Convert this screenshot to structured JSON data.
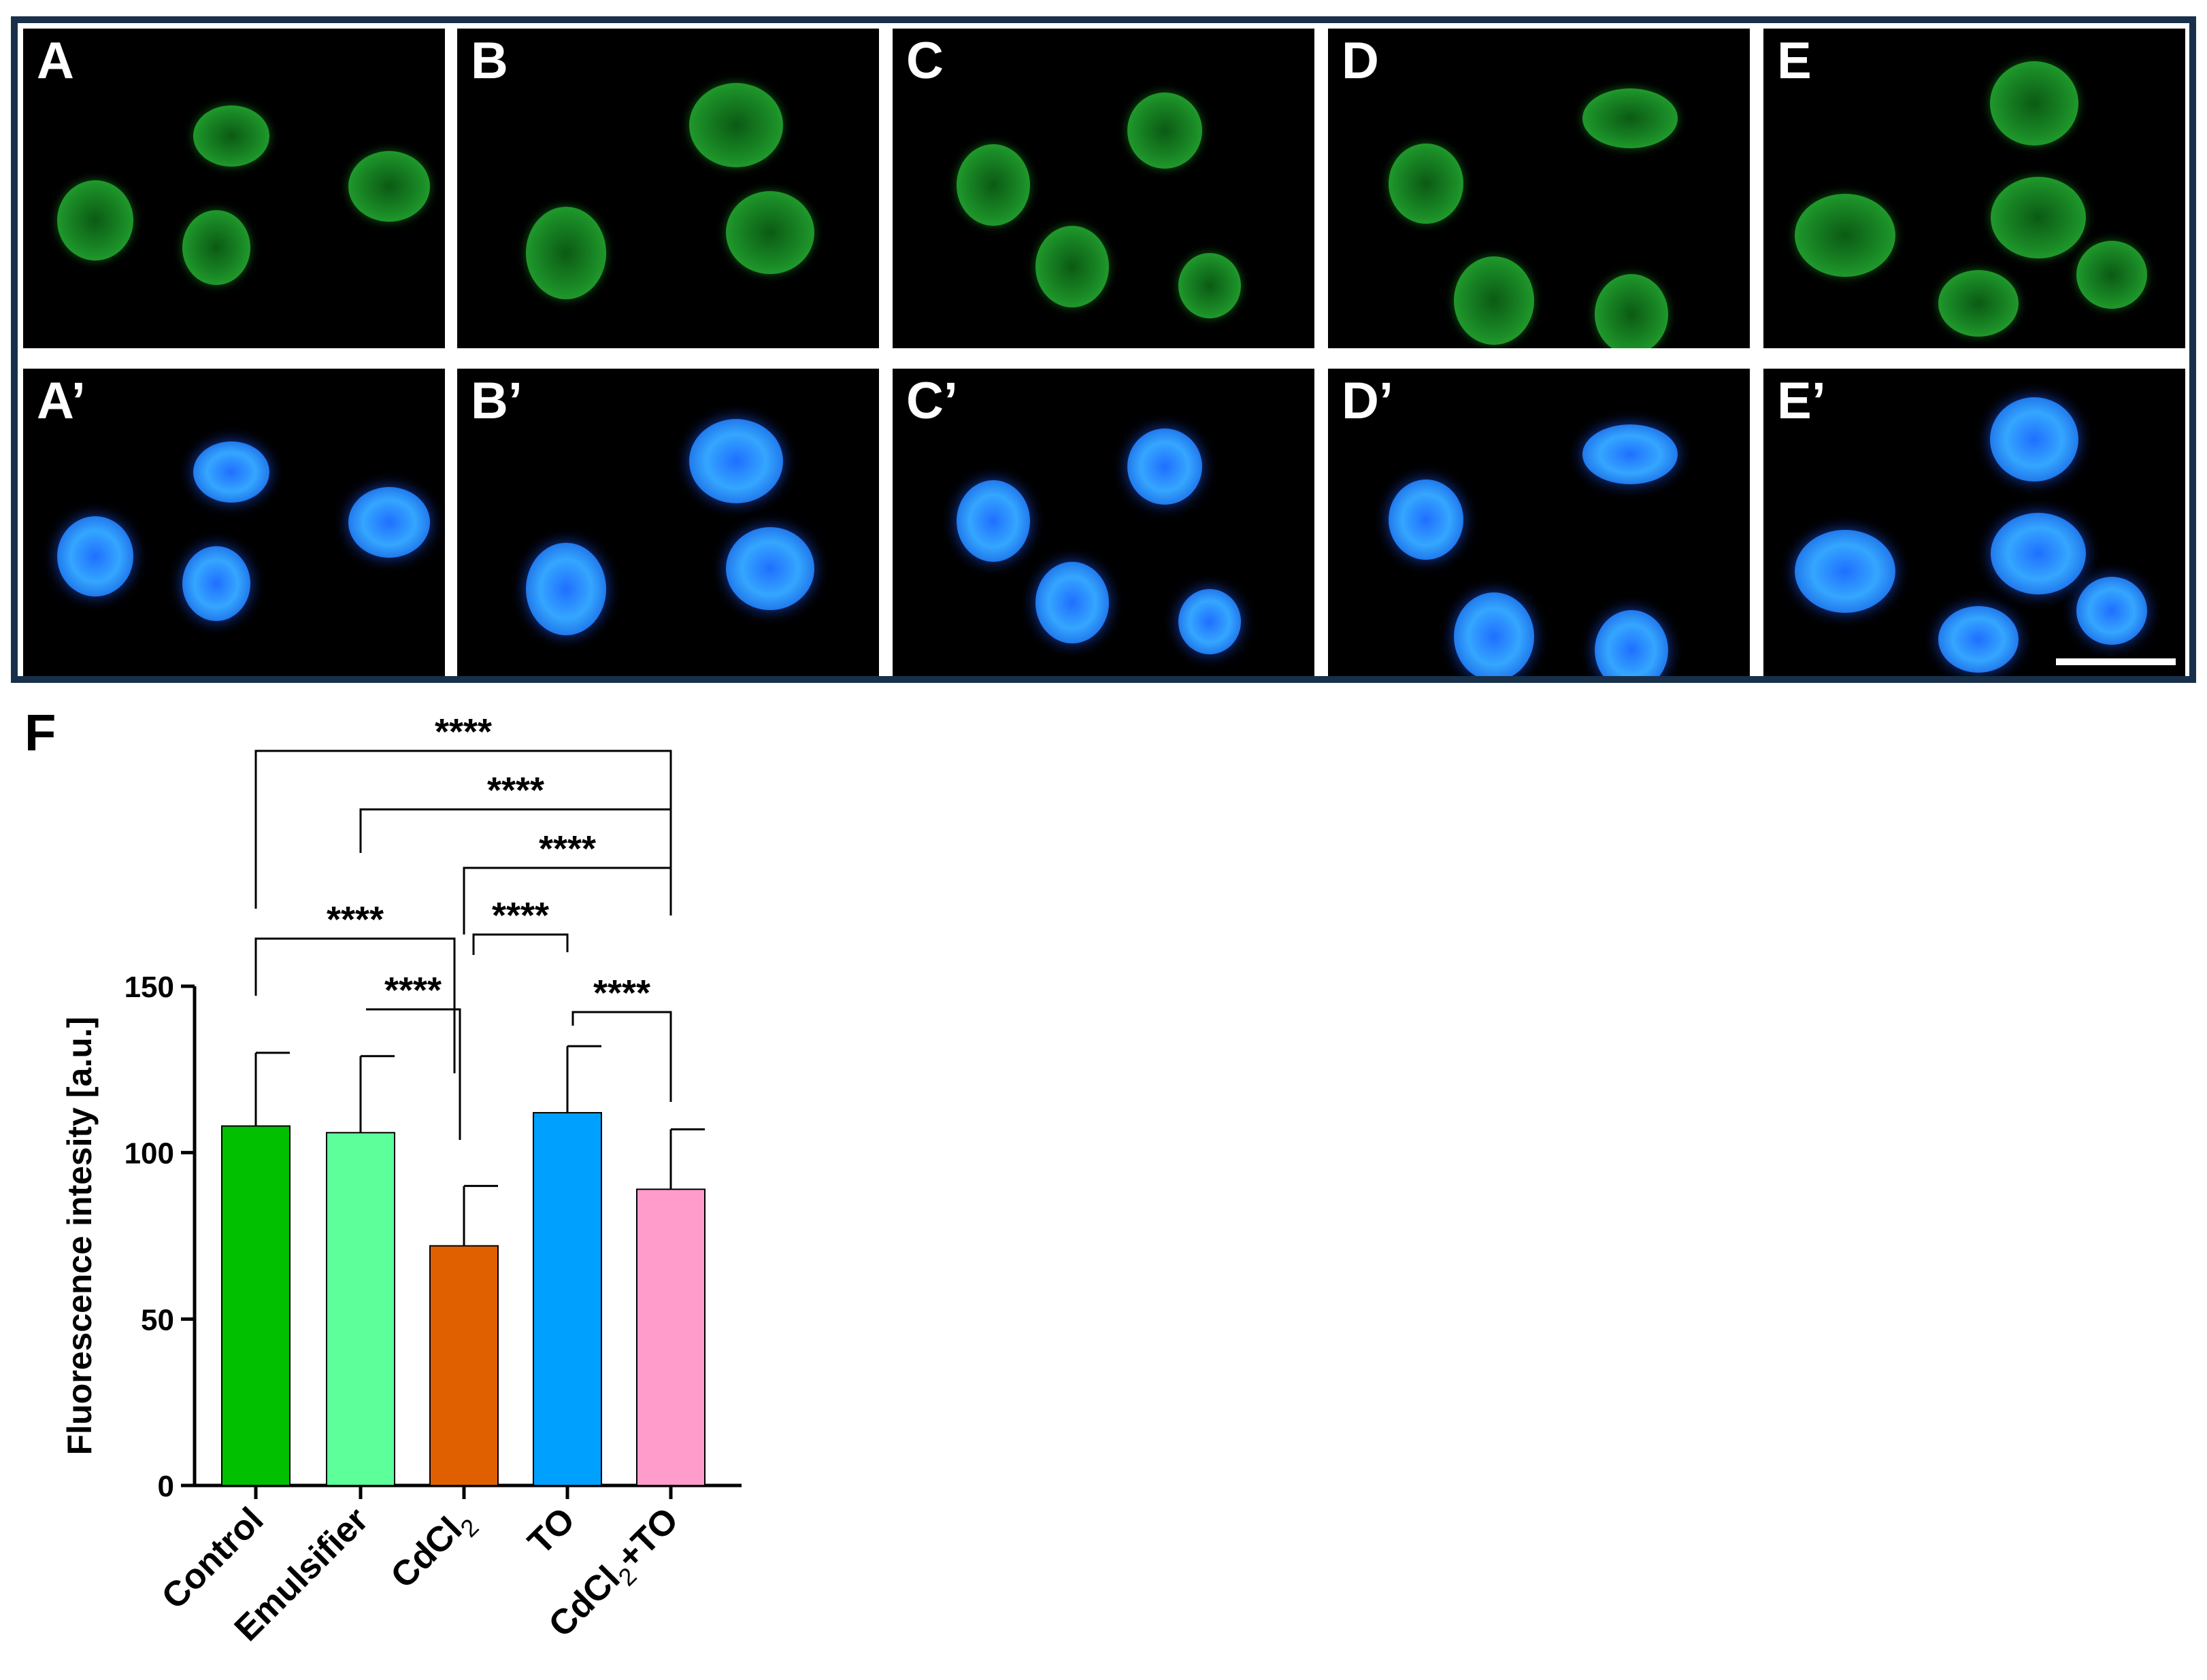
{
  "panels": {
    "top_row": [
      "A",
      "B",
      "C",
      "D",
      "E"
    ],
    "bottom_row": [
      "A’",
      "B’",
      "C’",
      "D’",
      "E’"
    ]
  },
  "panel_f_label": "F",
  "colors": {
    "green_channel": "#25a630",
    "blue_channel": "#35a6ff",
    "frame": "#18304a"
  },
  "chart_data": {
    "type": "bar",
    "title": "",
    "xlabel": "",
    "ylabel": "Fluorescence intesity [a.u.]",
    "ylim": [
      0,
      150
    ],
    "yticks": [
      "0",
      "50",
      "100",
      "150"
    ],
    "categories": [
      "Control",
      "Emulsifier",
      "CdCl2",
      "TO",
      "CdCl2+TO"
    ],
    "category_labels": [
      {
        "base": "Control",
        "sub": "",
        "tail": ""
      },
      {
        "base": "Emulsifier",
        "sub": "",
        "tail": ""
      },
      {
        "base": "CdCl",
        "sub": "2",
        "tail": ""
      },
      {
        "base": "TO",
        "sub": "",
        "tail": ""
      },
      {
        "base": "CdCl",
        "sub": "2",
        "tail": "+TO"
      }
    ],
    "values": [
      108,
      106,
      72,
      112,
      89
    ],
    "errors": [
      22,
      23,
      18,
      20,
      18
    ],
    "bar_colors": [
      "#00c000",
      "#5cff9a",
      "#e06000",
      "#00a0ff",
      "#ff9ccc"
    ],
    "significance": [
      {
        "from": 0,
        "to": 4,
        "label": "****"
      },
      {
        "from": 1,
        "to": 4,
        "label": "****"
      },
      {
        "from": 2,
        "to": 4,
        "label": "****"
      },
      {
        "from": 0,
        "to": 2,
        "label": "****"
      },
      {
        "from": 2,
        "to": 3,
        "label": "****"
      },
      {
        "from": 1,
        "to": 2,
        "label": "****"
      },
      {
        "from": 3,
        "to": 4,
        "label": "****"
      }
    ]
  }
}
